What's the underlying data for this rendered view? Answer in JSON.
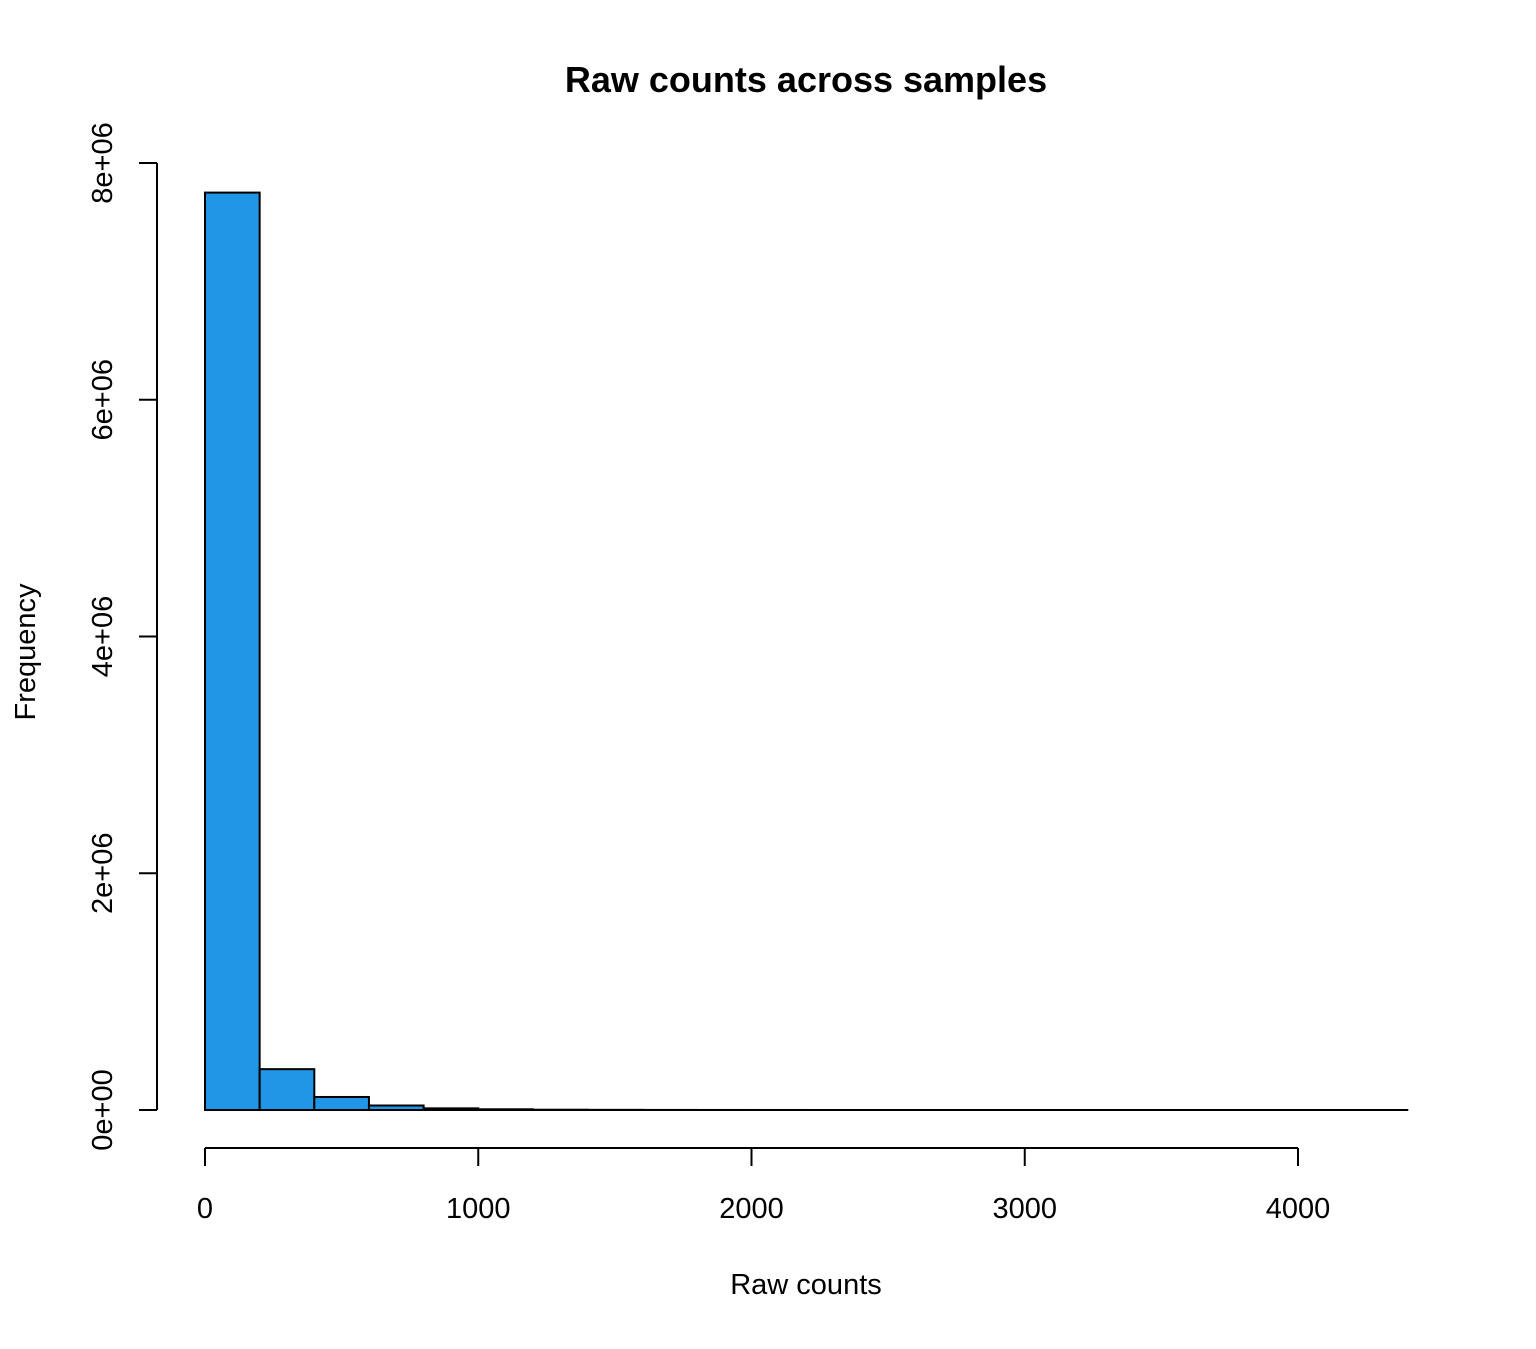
{
  "chart_data": {
    "type": "bar",
    "title": "Raw counts across samples",
    "xlabel": "Raw counts",
    "ylabel": "Frequency",
    "bin_width": 200,
    "bins": [
      {
        "x0": 0,
        "x1": 200,
        "count": 7750000
      },
      {
        "x0": 200,
        "x1": 400,
        "count": 345000
      },
      {
        "x0": 400,
        "x1": 600,
        "count": 110000
      },
      {
        "x0": 600,
        "x1": 800,
        "count": 38000
      },
      {
        "x0": 800,
        "x1": 1000,
        "count": 14000
      },
      {
        "x0": 1000,
        "x1": 1200,
        "count": 6000
      },
      {
        "x0": 1200,
        "x1": 1400,
        "count": 2500
      },
      {
        "x0": 1400,
        "x1": 1600,
        "count": 1200
      },
      {
        "x0": 1600,
        "x1": 1800,
        "count": 600
      },
      {
        "x0": 1800,
        "x1": 2000,
        "count": 300
      },
      {
        "x0": 2000,
        "x1": 2200,
        "count": 150
      },
      {
        "x0": 2200,
        "x1": 2400,
        "count": 80
      },
      {
        "x0": 2400,
        "x1": 2600,
        "count": 40
      },
      {
        "x0": 2600,
        "x1": 2800,
        "count": 20
      },
      {
        "x0": 2800,
        "x1": 3000,
        "count": 10
      },
      {
        "x0": 3000,
        "x1": 3200,
        "count": 5
      },
      {
        "x0": 3200,
        "x1": 3400,
        "count": 3
      },
      {
        "x0": 3400,
        "x1": 3600,
        "count": 2
      },
      {
        "x0": 3600,
        "x1": 3800,
        "count": 1
      },
      {
        "x0": 3800,
        "x1": 4000,
        "count": 1
      },
      {
        "x0": 4000,
        "x1": 4200,
        "count": 1
      },
      {
        "x0": 4200,
        "x1": 4400,
        "count": 1
      }
    ],
    "xlim": [
      0,
      4400
    ],
    "ylim": [
      0,
      8000000
    ],
    "x_ticks": [
      0,
      1000,
      2000,
      3000,
      4000
    ],
    "x_tick_labels": [
      "0",
      "1000",
      "2000",
      "3000",
      "4000"
    ],
    "y_ticks": [
      0,
      2000000,
      4000000,
      6000000,
      8000000
    ],
    "y_tick_labels": [
      "0e+00",
      "2e+06",
      "4e+06",
      "6e+06",
      "8e+06"
    ],
    "grid": false,
    "bar_color": "#2196E6",
    "bar_border_color": "#000000"
  }
}
